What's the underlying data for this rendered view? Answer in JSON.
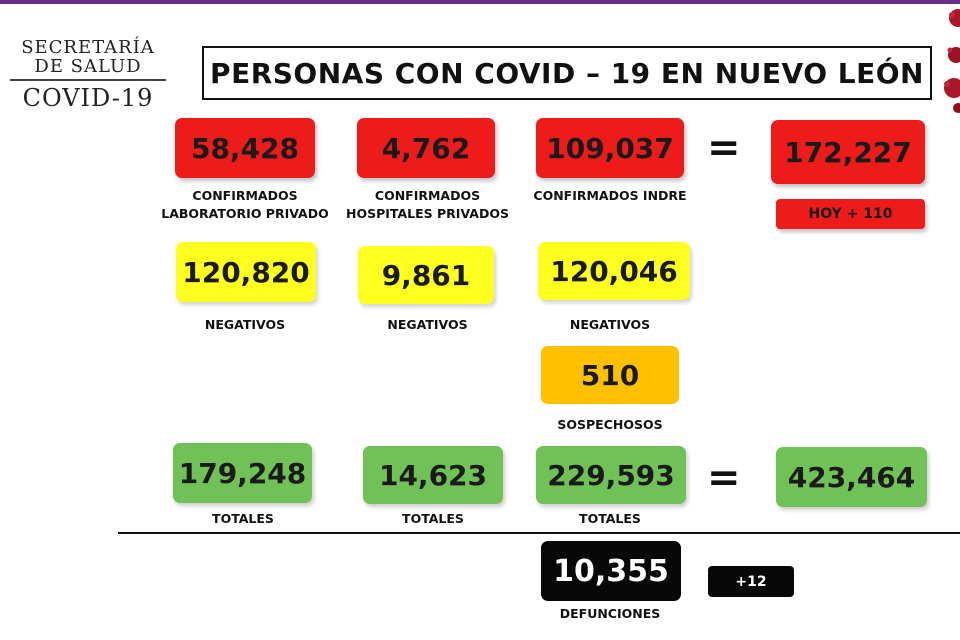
{
  "brand": {
    "line1": "SECRETARÍA",
    "line2": "DE SALUD",
    "line3": "COVID-19"
  },
  "title": "PERSONAS CON COVID – 19 EN NUEVO LEÓN",
  "confirmed": {
    "lab_privado": {
      "value": "58,428",
      "label1": "CONFIRMADOS",
      "label2": "LABORATORIO PRIVADO"
    },
    "hosp_privados": {
      "value": "4,762",
      "label1": "CONFIRMADOS",
      "label2": "HOSPITALES PRIVADOS"
    },
    "indre": {
      "value": "109,037",
      "label1": "CONFIRMADOS INDRE"
    },
    "total": {
      "value": "172,227",
      "today": "HOY + 110"
    }
  },
  "negatives": {
    "lab_privado": {
      "value": "120,820",
      "label": "NEGATIVOS"
    },
    "hosp_privados": {
      "value": "9,861",
      "label": "NEGATIVOS"
    },
    "indre": {
      "value": "120,046",
      "label": "NEGATIVOS"
    }
  },
  "suspects": {
    "value": "510",
    "label": "SOSPECHOSOS"
  },
  "totals": {
    "lab_privado": {
      "value": "179,248",
      "label": "TOTALES"
    },
    "hosp_privados": {
      "value": "14,623",
      "label": "TOTALES"
    },
    "indre": {
      "value": "229,593",
      "label": "TOTALES"
    },
    "grand": {
      "value": "423,464"
    }
  },
  "deaths": {
    "value": "10,355",
    "label": "DEFUNCIONES",
    "today": "+12"
  },
  "equals": "=",
  "colors": {
    "red": "#ee1b1b",
    "yellow": "#ffff1f",
    "orange": "#ffc000",
    "green": "#70c156",
    "black": "#080808"
  },
  "icons": {
    "corner": "virus-graphic"
  }
}
